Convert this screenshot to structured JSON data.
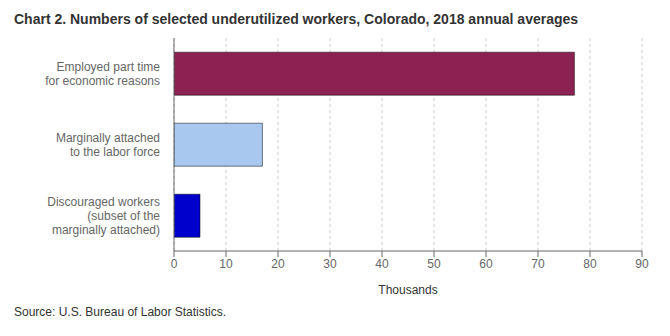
{
  "chart_data": {
    "type": "bar",
    "orientation": "horizontal",
    "title": "Chart 2. Numbers of selected underutilized workers, Colorado, 2018  annual averages",
    "categories": [
      "Discouraged workers\n(subset of the\nmarginally attached)",
      "Marginally attached\nto the labor force",
      "Employed part time\nfor economic reasons"
    ],
    "values": [
      5,
      17,
      77
    ],
    "colors": [
      "#0000cc",
      "#a8c8f0",
      "#8b2252"
    ],
    "xlabel": "Thousands",
    "xlim": [
      0,
      90
    ],
    "xticks": [
      0,
      10,
      20,
      30,
      40,
      50,
      60,
      70,
      80,
      90
    ],
    "grid": true,
    "annotations": [
      "Source: U.S. Bureau of Labor Statistics."
    ]
  }
}
